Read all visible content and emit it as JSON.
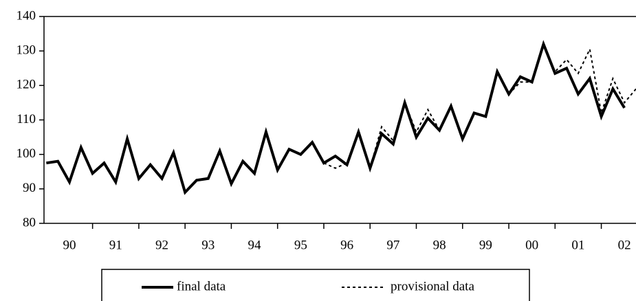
{
  "chart_data": {
    "type": "line",
    "x": [
      1990,
      1990.25,
      1990.5,
      1990.75,
      1991,
      1991.25,
      1991.5,
      1991.75,
      1992,
      1992.25,
      1992.5,
      1992.75,
      1993,
      1993.25,
      1993.5,
      1993.75,
      1994,
      1994.25,
      1994.5,
      1994.75,
      1995,
      1995.25,
      1995.5,
      1995.75,
      1996,
      1996.25,
      1996.5,
      1996.75,
      1997,
      1997.25,
      1997.5,
      1997.75,
      1998,
      1998.25,
      1998.5,
      1998.75,
      1999,
      1999.25,
      1999.5,
      1999.75,
      2000,
      2000.25,
      2000.5,
      2000.75,
      2001,
      2001.25,
      2001.5,
      2001.75,
      2002,
      2002.25,
      2002.5,
      2002.75
    ],
    "series": [
      {
        "name": "final data",
        "color": "#000000",
        "dash": false,
        "values": [
          97.5,
          98,
          92,
          102,
          94.5,
          97.5,
          92,
          104.5,
          93,
          97,
          93,
          100.5,
          89,
          92.5,
          93,
          101,
          91.5,
          98,
          94.5,
          106.5,
          95.5,
          101.5,
          100,
          103.5,
          97.5,
          99.5,
          97,
          106.5,
          96,
          106,
          103,
          115,
          105,
          110.5,
          107,
          114,
          104.5,
          112,
          111,
          124,
          117.5,
          122.5,
          121,
          132,
          123.5,
          125,
          117.5,
          122,
          111,
          119,
          113.5,
          null
        ]
      },
      {
        "name": "provisional data",
        "color": "#000000",
        "dash": true,
        "values": [
          null,
          null,
          null,
          null,
          null,
          null,
          null,
          null,
          null,
          null,
          null,
          null,
          null,
          null,
          null,
          null,
          null,
          null,
          null,
          null,
          null,
          null,
          null,
          null,
          97.5,
          96,
          97.5,
          106.5,
          96,
          108,
          104,
          115,
          106.5,
          113,
          107,
          114,
          104.5,
          112,
          111,
          124,
          117.5,
          121,
          121,
          132,
          124,
          127.5,
          123.5,
          130.5,
          112,
          122,
          115,
          119
        ]
      }
    ],
    "xlim": [
      1989.95,
      2002.75
    ],
    "xticks": [
      {
        "value": 1990.5,
        "label": "90"
      },
      {
        "value": 1991.5,
        "label": "91"
      },
      {
        "value": 1992.5,
        "label": "92"
      },
      {
        "value": 1993.5,
        "label": "93"
      },
      {
        "value": 1994.5,
        "label": "94"
      },
      {
        "value": 1995.5,
        "label": "95"
      },
      {
        "value": 1996.5,
        "label": "96"
      },
      {
        "value": 1997.5,
        "label": "97"
      },
      {
        "value": 1998.5,
        "label": "98"
      },
      {
        "value": 1999.5,
        "label": "99"
      },
      {
        "value": 2000.5,
        "label": "00"
      },
      {
        "value": 2001.5,
        "label": "01"
      },
      {
        "value": 2002.5,
        "label": "02"
      }
    ],
    "xminorticks": [
      1991,
      1992,
      1993,
      1994,
      1995,
      1996,
      1997,
      1998,
      1999,
      2000,
      2001,
      2002
    ],
    "ylim": [
      80,
      140
    ],
    "yticks": [
      80,
      90,
      100,
      110,
      120,
      130,
      140
    ],
    "grid": false,
    "legend": "bottom"
  }
}
